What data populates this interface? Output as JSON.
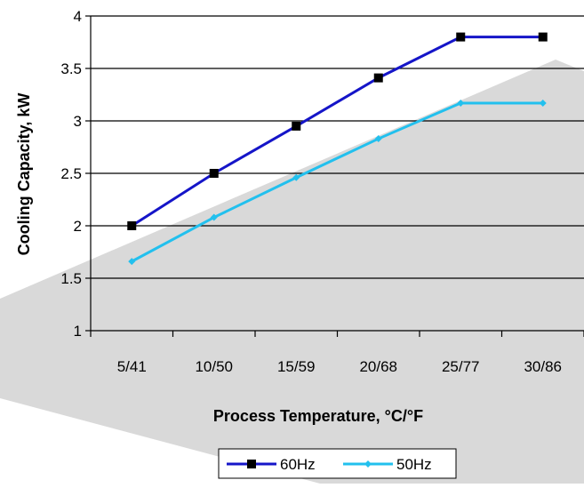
{
  "chart_data": {
    "type": "line",
    "categories": [
      "5/41",
      "10/50",
      "15/59",
      "20/68",
      "25/77",
      "30/86"
    ],
    "series": [
      {
        "name": "60Hz",
        "values": [
          2.0,
          2.5,
          2.95,
          3.41,
          3.8,
          3.8
        ],
        "color": "#1515c8",
        "marker": "square"
      },
      {
        "name": "50Hz",
        "values": [
          1.66,
          2.08,
          2.46,
          2.83,
          3.17,
          3.17
        ],
        "color": "#22c0ee",
        "marker": "diamond"
      }
    ],
    "title": "",
    "xlabel": "Process Temperature, °C/°F",
    "ylabel": "Cooling Capacity, kW",
    "ylim": [
      1,
      4
    ],
    "yticks": [
      "1",
      "1.5",
      "2",
      "2.5",
      "3",
      "3.5",
      "4"
    ],
    "grid": "horizontal",
    "legend": "bottom",
    "background_watermark_color": "#d9d9d9"
  }
}
